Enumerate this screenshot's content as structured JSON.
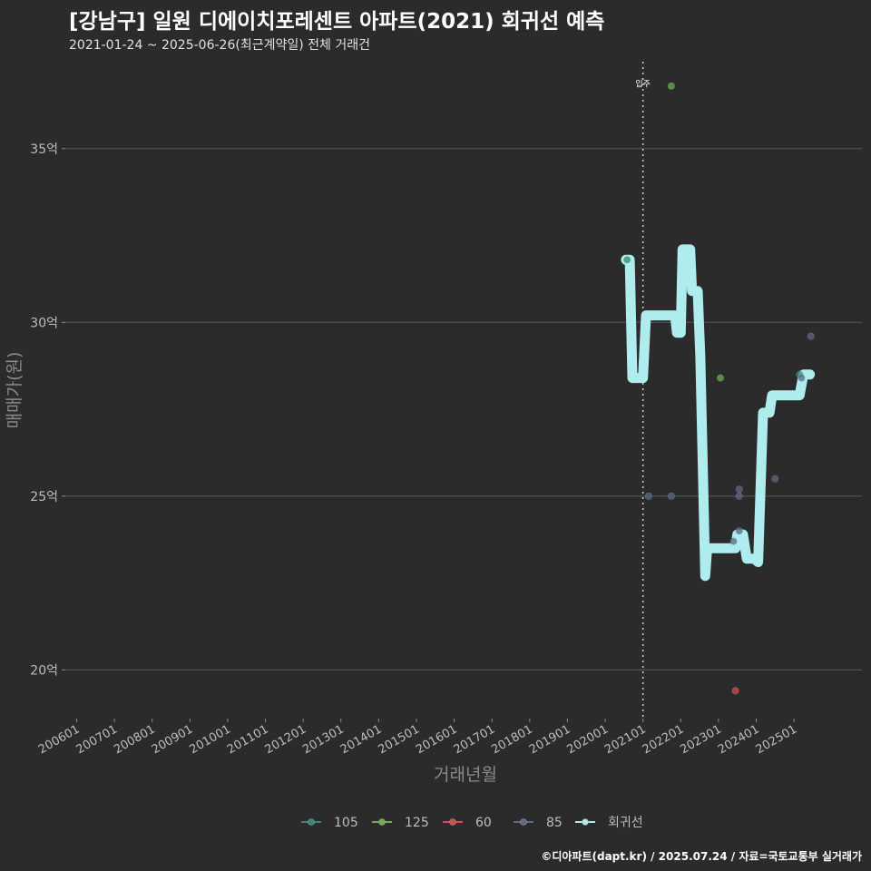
{
  "header": {
    "title": "[강남구] 일원 디에이치포레센트 아파트(2021) 회귀선 예측",
    "subtitle": "2021-01-24 ~ 2025-06-26(최근계약일) 전체 거래건"
  },
  "footer": {
    "credit": "©디아파트(dapt.kr) / 2025.07.24 / 자료=국토교통부 실거래가"
  },
  "colors": {
    "background": "#2b2b2c",
    "grid": "#5b5b5b",
    "regression": "#aeeced",
    "s105": "#2f8a78",
    "s125": "#6ab04c",
    "s60": "#d94a4a",
    "s85": "#5a6a86"
  },
  "chart_data": {
    "type": "scatter",
    "xlabel": "거래년월",
    "ylabel": "매매가(원)",
    "xlim": [
      2005.7,
      2026.8
    ],
    "ylim": [
      18.6,
      37.5
    ],
    "x_ticks": [
      {
        "label": "200601",
        "x": 2006.0
      },
      {
        "label": "200701",
        "x": 2007.0
      },
      {
        "label": "200801",
        "x": 2008.0
      },
      {
        "label": "200901",
        "x": 2009.0
      },
      {
        "label": "201001",
        "x": 2010.0
      },
      {
        "label": "201101",
        "x": 2011.0
      },
      {
        "label": "201201",
        "x": 2012.0
      },
      {
        "label": "201301",
        "x": 2013.0
      },
      {
        "label": "201401",
        "x": 2014.0
      },
      {
        "label": "201501",
        "x": 2015.0
      },
      {
        "label": "201601",
        "x": 2016.0
      },
      {
        "label": "201701",
        "x": 2017.0
      },
      {
        "label": "201801",
        "x": 2018.0
      },
      {
        "label": "201901",
        "x": 2019.0
      },
      {
        "label": "202001",
        "x": 2020.0
      },
      {
        "label": "202101",
        "x": 2021.0
      },
      {
        "label": "202201",
        "x": 2022.0
      },
      {
        "label": "202301",
        "x": 2023.0
      },
      {
        "label": "202401",
        "x": 2024.0
      },
      {
        "label": "202501",
        "x": 2025.0
      }
    ],
    "y_ticks": [
      {
        "label": "20억",
        "value": 20
      },
      {
        "label": "25억",
        "value": 25
      },
      {
        "label": "30억",
        "value": 30
      },
      {
        "label": "35억",
        "value": 35
      }
    ],
    "annotation": {
      "label": "입주",
      "x": 2021.0
    },
    "series": [
      {
        "name": "105",
        "color_key": "s105",
        "points": [
          [
            2020.58,
            31.8
          ],
          [
            2025.15,
            28.5
          ]
        ]
      },
      {
        "name": "125",
        "color_key": "s125",
        "points": [
          [
            2021.75,
            36.8
          ],
          [
            2023.05,
            28.4
          ]
        ]
      },
      {
        "name": "60",
        "color_key": "s60",
        "points": [
          [
            2023.45,
            19.4
          ]
        ]
      },
      {
        "name": "85",
        "color_key": "s85",
        "points": [
          [
            2021.15,
            25.0
          ],
          [
            2021.75,
            25.0
          ],
          [
            2023.55,
            25.2
          ],
          [
            2023.55,
            25.0
          ],
          [
            2023.55,
            24.0
          ],
          [
            2023.4,
            23.7
          ],
          [
            2024.5,
            25.5
          ],
          [
            2025.45,
            29.6
          ],
          [
            2025.2,
            28.4
          ]
        ]
      }
    ],
    "regression": {
      "name": "회귀선",
      "points": [
        [
          2020.55,
          31.8
        ],
        [
          2020.65,
          31.8
        ],
        [
          2020.72,
          28.4
        ],
        [
          2021.0,
          28.4
        ],
        [
          2021.08,
          30.2
        ],
        [
          2021.85,
          30.2
        ],
        [
          2021.9,
          29.7
        ],
        [
          2022.0,
          29.7
        ],
        [
          2022.05,
          32.1
        ],
        [
          2022.25,
          32.1
        ],
        [
          2022.3,
          30.9
        ],
        [
          2022.45,
          30.9
        ],
        [
          2022.52,
          29.0
        ],
        [
          2022.65,
          22.7
        ],
        [
          2022.7,
          23.5
        ],
        [
          2023.45,
          23.5
        ],
        [
          2023.5,
          23.9
        ],
        [
          2023.65,
          23.9
        ],
        [
          2023.75,
          23.2
        ],
        [
          2023.95,
          23.2
        ],
        [
          2024.05,
          23.1
        ],
        [
          2024.18,
          27.4
        ],
        [
          2024.35,
          27.4
        ],
        [
          2024.42,
          27.9
        ],
        [
          2025.15,
          27.9
        ],
        [
          2025.25,
          28.5
        ],
        [
          2025.42,
          28.5
        ]
      ]
    }
  }
}
